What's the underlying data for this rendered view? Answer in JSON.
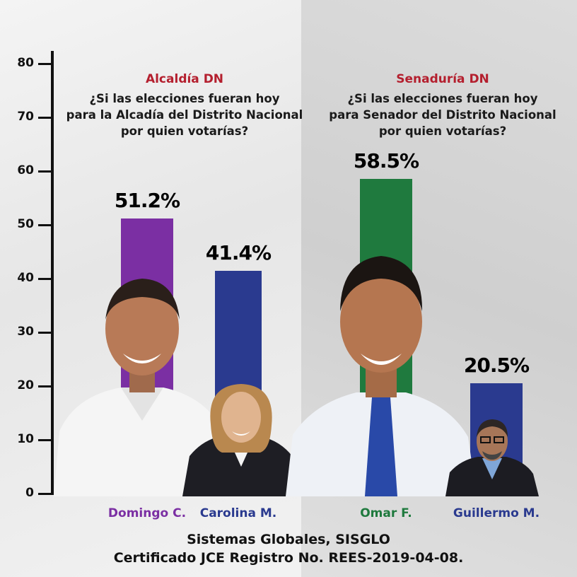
{
  "chart_data": {
    "type": "bar",
    "ylim": [
      0,
      80
    ],
    "yticks": [
      0,
      10,
      20,
      30,
      40,
      50,
      60,
      70,
      80
    ],
    "grid": false,
    "panels": [
      {
        "title": "Alcaldía DN",
        "question": [
          "¿Si las elecciones fueran hoy",
          "para la Alcadía del Distrito Nacional",
          "por quien votarías?"
        ],
        "categories": [
          "Domingo C.",
          "Carolina M."
        ],
        "values": [
          51.2,
          41.4
        ],
        "labels": [
          "51.2%",
          "41.4%"
        ],
        "colors": [
          "#7b2fa3",
          "#2a3a8f"
        ],
        "name_colors": [
          "#7b2fa3",
          "#2a3a8f"
        ]
      },
      {
        "title": "Senaduría DN",
        "question": [
          "¿Si las elecciones fueran hoy",
          "para Senador del Distrito Nacional",
          "por quien votarías?"
        ],
        "categories": [
          "Omar F.",
          "Guillermo M."
        ],
        "values": [
          58.5,
          20.5
        ],
        "labels": [
          "58.5%",
          "20.5%"
        ],
        "colors": [
          "#1f7a3e",
          "#2a3a8f"
        ],
        "name_colors": [
          "#1f7a3e",
          "#2a3a8f"
        ]
      }
    ]
  },
  "footer": {
    "line1": "Sistemas Globales, SISGLO",
    "line2": "Certificado JCE Registro No. REES-2019-04-08."
  }
}
